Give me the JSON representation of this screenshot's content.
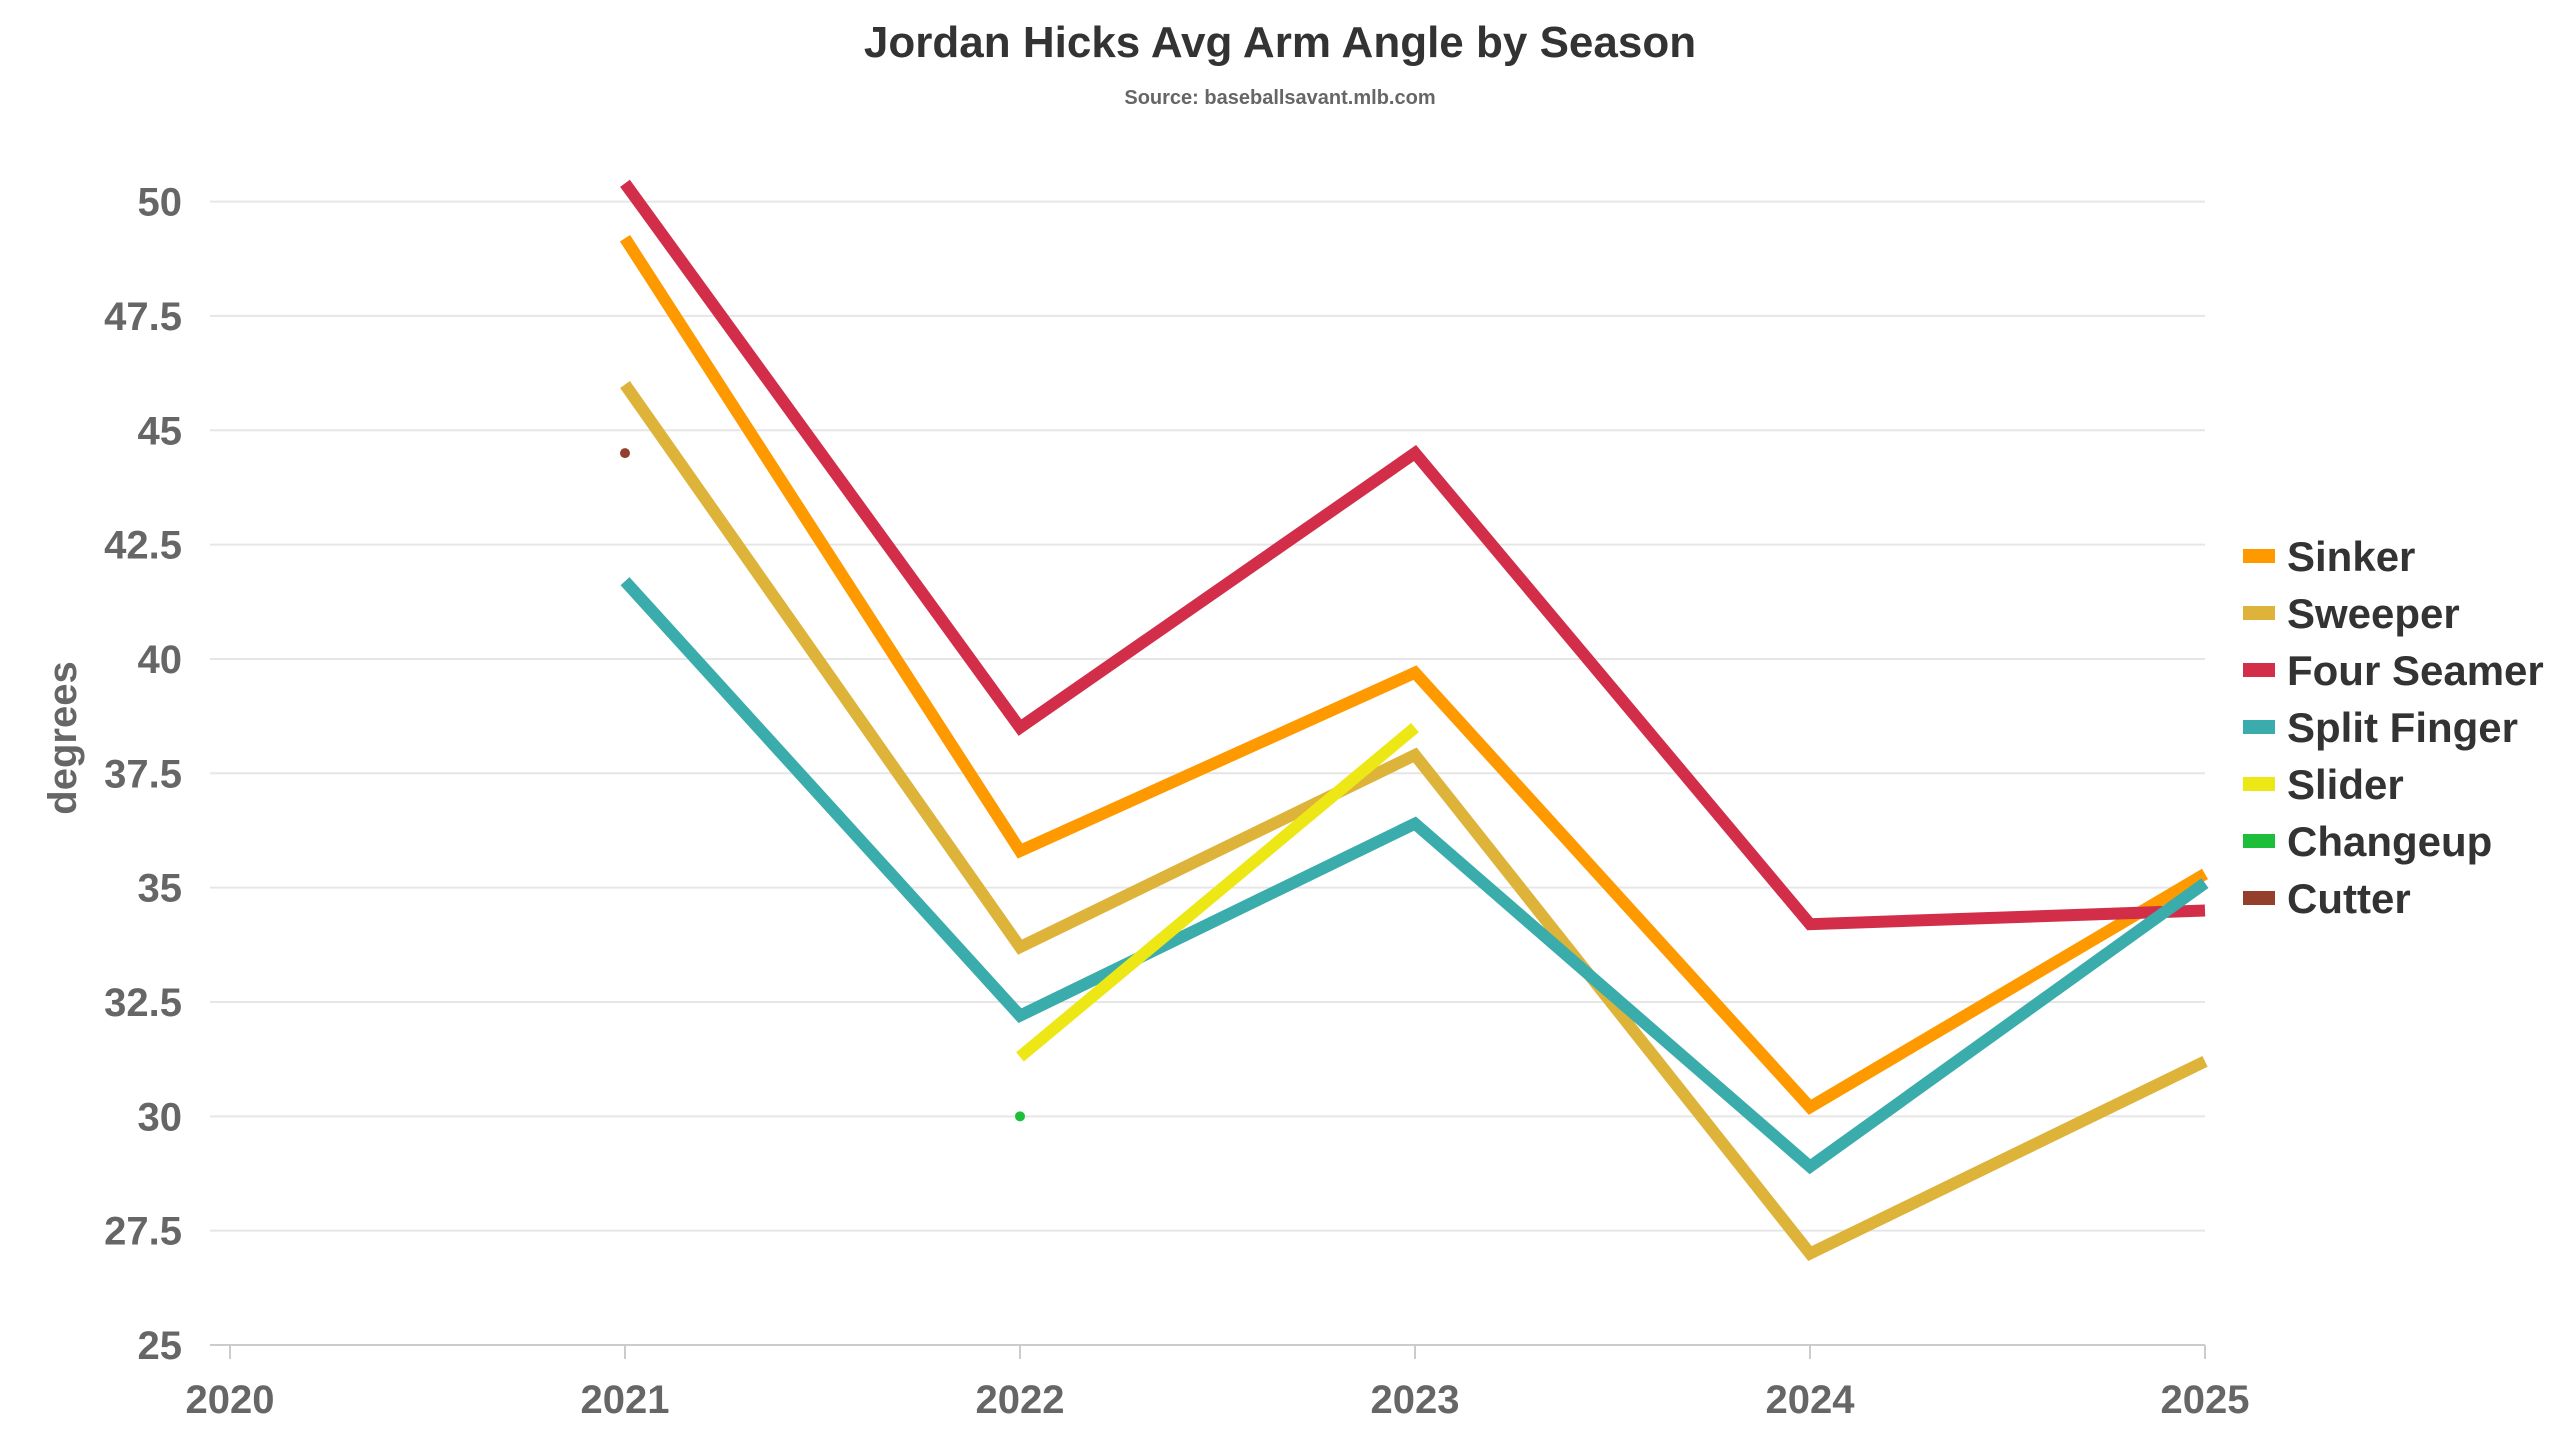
{
  "chart_data": {
    "type": "line",
    "title": "Jordan Hicks Avg Arm Angle by Season",
    "subtitle": "Source: baseballsavant.mlb.com",
    "xlabel": "",
    "ylabel": "degrees",
    "xlim": [
      2020,
      2025
    ],
    "ylim": [
      25,
      50
    ],
    "x_ticks": [
      "2020",
      "2021",
      "2022",
      "2023",
      "2024",
      "2025"
    ],
    "y_ticks": [
      "25",
      "27.5",
      "30",
      "32.5",
      "35",
      "37.5",
      "40",
      "42.5",
      "45",
      "47.5",
      "50"
    ],
    "grid": true,
    "legend_position": "right",
    "series": [
      {
        "name": "Sinker",
        "color": "#FF9900",
        "points": [
          [
            2021,
            49.2
          ],
          [
            2022,
            35.8
          ],
          [
            2023,
            39.7
          ],
          [
            2024,
            30.2
          ],
          [
            2025,
            35.3
          ]
        ]
      },
      {
        "name": "Sweeper",
        "color": "#DDB33A",
        "points": [
          [
            2021,
            46.0
          ],
          [
            2022,
            33.7
          ],
          [
            2023,
            37.9
          ],
          [
            2024,
            27.0
          ],
          [
            2025,
            31.2
          ]
        ]
      },
      {
        "name": "Four Seamer",
        "color": "#D22D49",
        "points": [
          [
            2021,
            50.4
          ],
          [
            2022,
            38.5
          ],
          [
            2023,
            44.5
          ],
          [
            2024,
            34.2
          ],
          [
            2025,
            34.5
          ]
        ]
      },
      {
        "name": "Split Finger",
        "color": "#3BACAC",
        "points": [
          [
            2021,
            41.7
          ],
          [
            2022,
            32.2
          ],
          [
            2023,
            36.4
          ],
          [
            2024,
            28.9
          ],
          [
            2025,
            35.1
          ]
        ]
      },
      {
        "name": "Slider",
        "color": "#EEE716",
        "points": [
          [
            2022,
            31.3
          ],
          [
            2023,
            38.5
          ]
        ]
      },
      {
        "name": "Changeup",
        "color": "#1DBE3A",
        "points": [
          [
            2022,
            30.0
          ]
        ]
      },
      {
        "name": "Cutter",
        "color": "#933F2C",
        "points": [
          [
            2021,
            44.5
          ]
        ]
      }
    ]
  }
}
